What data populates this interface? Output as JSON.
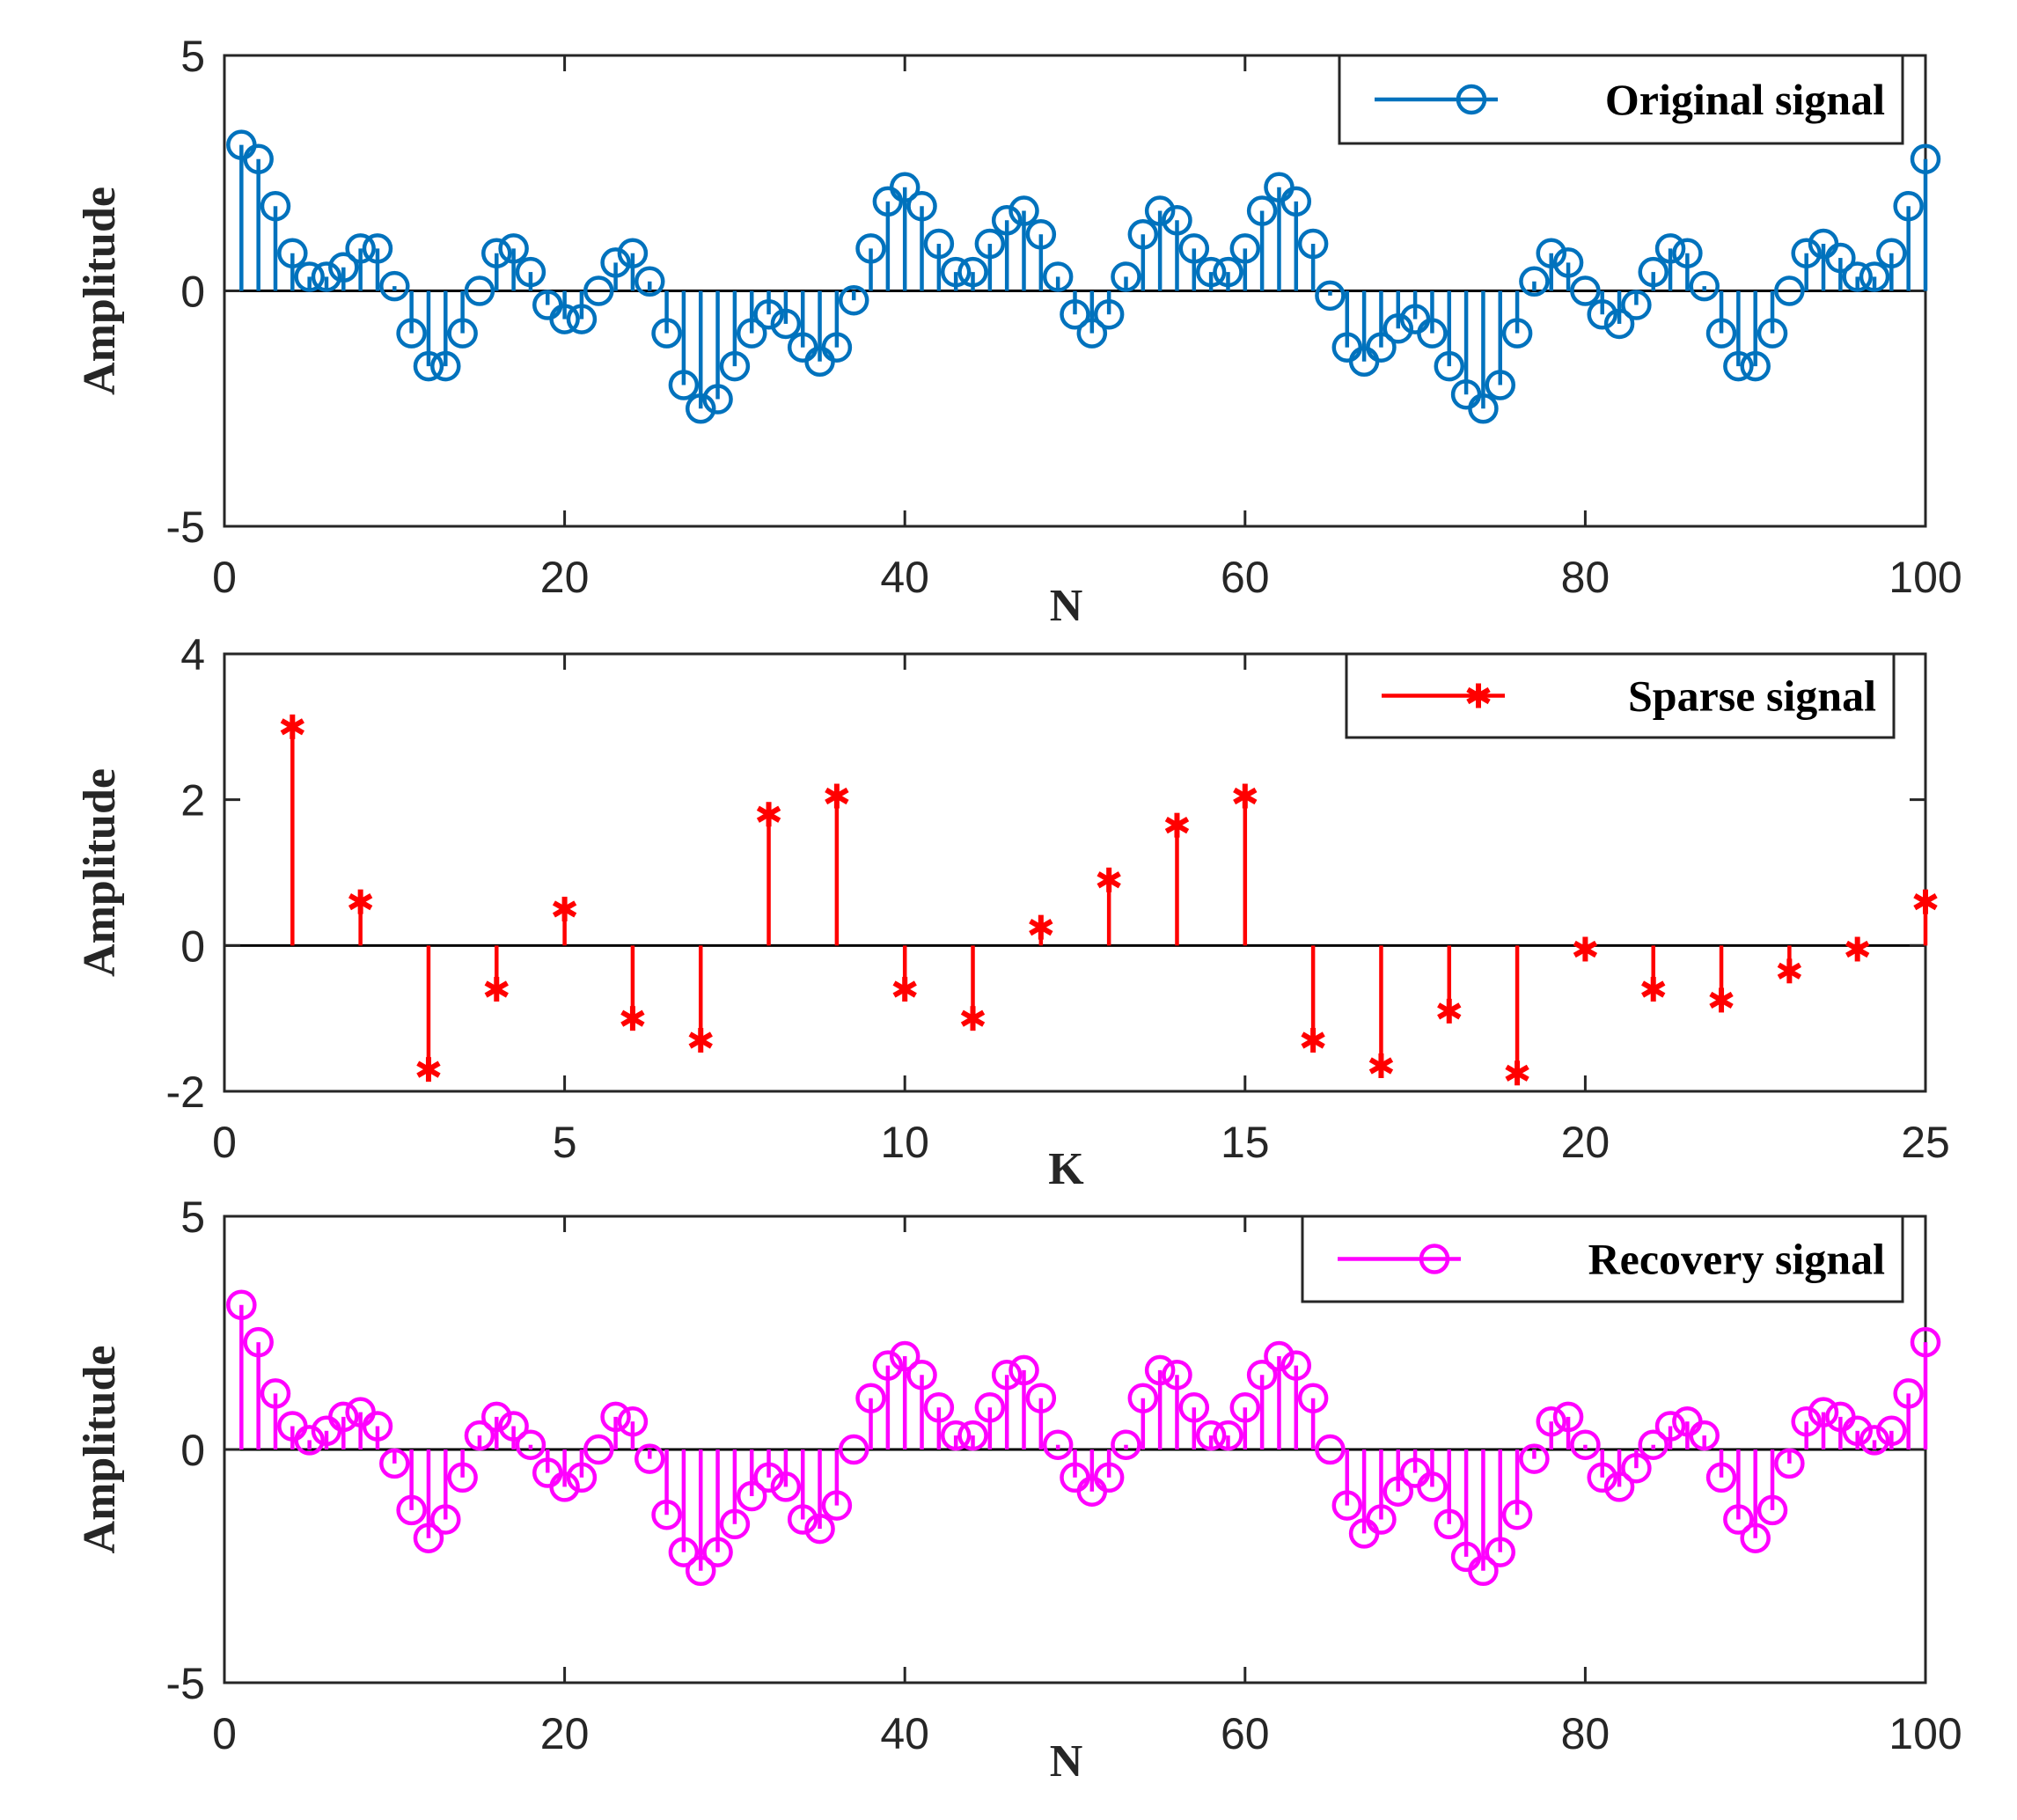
{
  "chart_data": [
    {
      "type": "stem",
      "marker": "circle",
      "color": "#0072BD",
      "legend": "Original signal",
      "xlabel": "N",
      "ylabel": "Amplitude",
      "xlim": [
        0,
        100
      ],
      "ylim": [
        -5,
        5
      ],
      "xticks": [
        "0",
        "20",
        "40",
        "60",
        "80",
        "100"
      ],
      "yticks": [
        "5",
        "0",
        "-5"
      ],
      "x_start": 1,
      "values": [
        3.1,
        2.8,
        1.8,
        0.8,
        0.3,
        0.3,
        0.5,
        0.9,
        0.9,
        0.1,
        -0.9,
        -1.6,
        -1.6,
        -0.9,
        0.0,
        0.8,
        0.9,
        0.4,
        -0.3,
        -0.6,
        -0.6,
        0.0,
        0.6,
        0.8,
        0.2,
        -0.9,
        -2.0,
        -2.5,
        -2.3,
        -1.6,
        -0.9,
        -0.5,
        -0.7,
        -1.2,
        -1.5,
        -1.2,
        -0.2,
        0.9,
        1.9,
        2.2,
        1.8,
        1.0,
        0.4,
        0.4,
        1.0,
        1.5,
        1.7,
        1.2,
        0.3,
        -0.5,
        -0.9,
        -0.5,
        0.3,
        1.2,
        1.7,
        1.5,
        0.9,
        0.4,
        0.4,
        0.9,
        1.7,
        2.2,
        1.9,
        1.0,
        -0.1,
        -1.2,
        -1.5,
        -1.2,
        -0.8,
        -0.6,
        -0.9,
        -1.6,
        -2.2,
        -2.5,
        -2.0,
        -0.9,
        0.2,
        0.8,
        0.6,
        0.0,
        -0.5,
        -0.7,
        -0.3,
        0.4,
        0.9,
        0.8,
        0.1,
        -0.9,
        -1.6,
        -1.6,
        -0.9,
        0.0,
        0.8,
        1.0,
        0.7,
        0.3,
        0.3,
        0.8,
        1.8,
        2.8
      ]
    },
    {
      "type": "stem",
      "marker": "asterisk",
      "color": "#FF0000",
      "legend": "Sparse signal",
      "xlabel": "K",
      "ylabel": "Amplitude",
      "xlim": [
        0,
        25
      ],
      "ylim": [
        -2,
        4
      ],
      "xticks": [
        "0",
        "5",
        "10",
        "15",
        "20",
        "25"
      ],
      "yticks": [
        "4",
        "2",
        "0",
        "-2"
      ],
      "x_start": 1,
      "values": [
        3.0,
        0.6,
        -1.7,
        -0.6,
        0.5,
        -1.0,
        -1.3,
        1.8,
        2.05,
        -0.6,
        -1.0,
        0.25,
        0.9,
        1.65,
        2.05,
        -1.3,
        -1.65,
        -0.9,
        -1.75,
        -0.05,
        -0.6,
        -0.75,
        -0.35,
        -0.05,
        0.6
      ]
    },
    {
      "type": "stem",
      "marker": "circle",
      "color": "#FF00FF",
      "legend": "Recovery signal",
      "xlabel": "N",
      "ylabel": "Amplitude",
      "xlim": [
        0,
        100
      ],
      "ylim": [
        -5,
        5
      ],
      "xticks": [
        "0",
        "20",
        "40",
        "60",
        "80",
        "100"
      ],
      "yticks": [
        "5",
        "0",
        "-5"
      ],
      "x_start": 1,
      "values": [
        3.1,
        2.3,
        1.2,
        0.5,
        0.2,
        0.4,
        0.7,
        0.8,
        0.5,
        -0.3,
        -1.3,
        -1.9,
        -1.5,
        -0.6,
        0.3,
        0.7,
        0.5,
        0.1,
        -0.5,
        -0.8,
        -0.6,
        0.0,
        0.7,
        0.6,
        -0.2,
        -1.4,
        -2.2,
        -2.6,
        -2.2,
        -1.6,
        -1.0,
        -0.6,
        -0.8,
        -1.5,
        -1.7,
        -1.2,
        0.0,
        1.1,
        1.8,
        2.0,
        1.6,
        0.9,
        0.3,
        0.3,
        0.9,
        1.6,
        1.7,
        1.1,
        0.1,
        -0.6,
        -0.9,
        -0.6,
        0.1,
        1.1,
        1.7,
        1.6,
        0.9,
        0.3,
        0.3,
        0.9,
        1.6,
        2.0,
        1.8,
        1.1,
        0.0,
        -1.2,
        -1.8,
        -1.5,
        -0.9,
        -0.5,
        -0.8,
        -1.6,
        -2.3,
        -2.6,
        -2.2,
        -1.4,
        -0.2,
        0.6,
        0.7,
        0.1,
        -0.6,
        -0.8,
        -0.4,
        0.1,
        0.5,
        0.6,
        0.3,
        -0.6,
        -1.5,
        -1.9,
        -1.3,
        -0.3,
        0.6,
        0.8,
        0.7,
        0.4,
        0.2,
        0.4,
        1.2,
        2.3
      ]
    }
  ]
}
